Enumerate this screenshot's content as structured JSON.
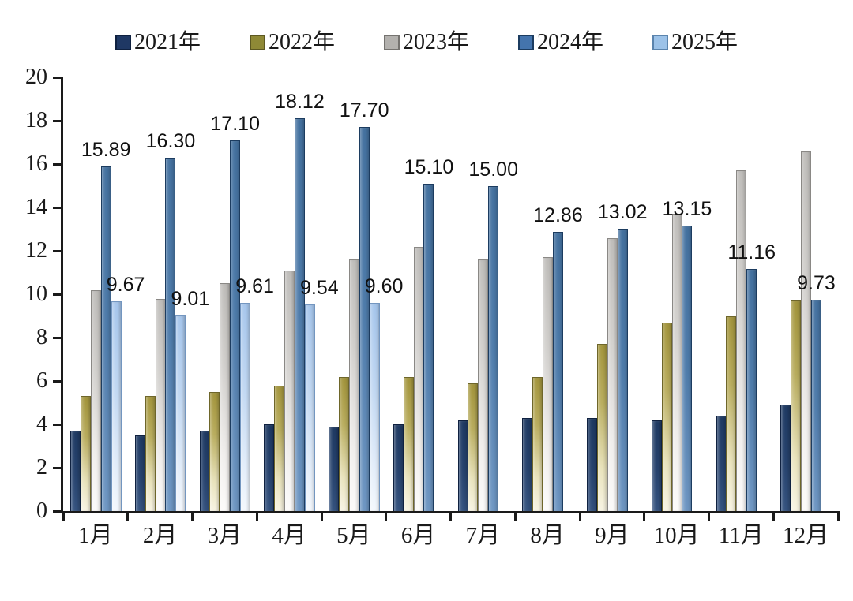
{
  "chart_data": {
    "type": "bar",
    "title": "",
    "categories": [
      "1月",
      "2月",
      "3月",
      "4月",
      "5月",
      "6月",
      "7月",
      "8月",
      "9月",
      "10月",
      "11月",
      "12月"
    ],
    "series": [
      {
        "name": "2021年",
        "color": "#1F3864",
        "values": [
          3.7,
          3.5,
          3.7,
          4.0,
          3.9,
          4.0,
          4.2,
          4.3,
          4.3,
          4.2,
          4.4,
          4.9
        ],
        "data_labels": null
      },
      {
        "name": "2022年",
        "color": "#8F8936",
        "values": [
          5.3,
          5.3,
          5.5,
          5.8,
          6.2,
          6.2,
          5.9,
          6.2,
          7.7,
          8.7,
          9.0,
          9.7
        ],
        "data_labels": null
      },
      {
        "name": "2023年",
        "color": "#B3B1AE",
        "values": [
          10.2,
          9.8,
          10.5,
          11.1,
          11.6,
          12.2,
          11.6,
          11.7,
          12.6,
          13.7,
          15.7,
          16.6
        ],
        "data_labels": null
      },
      {
        "name": "2024年",
        "color": "#4474AD",
        "values": [
          15.89,
          16.3,
          17.1,
          18.12,
          17.7,
          15.1,
          15.0,
          12.86,
          13.02,
          13.15,
          11.16,
          9.73
        ],
        "data_labels": [
          "15.89",
          "16.30",
          "17.10",
          "18.12",
          "17.70",
          "15.10",
          "15.00",
          "12.86",
          "13.02",
          "13.15",
          "11.16",
          "9.73"
        ]
      },
      {
        "name": "2025年",
        "color": "#9CC2E8",
        "values": [
          9.67,
          9.01,
          9.61,
          9.54,
          9.6,
          null,
          null,
          null,
          null,
          null,
          null,
          null
        ],
        "data_labels": [
          "9.67",
          "9.01",
          "9.61",
          "9.54",
          "9.60",
          null,
          null,
          null,
          null,
          null,
          null,
          null
        ]
      }
    ],
    "ylim": [
      0,
      20
    ],
    "ytick_step": 2,
    "ytick_labels": [
      "0",
      "2",
      "4",
      "6",
      "8",
      "10",
      "12",
      "14",
      "16",
      "18",
      "20"
    ],
    "xlabel": "",
    "ylabel": "",
    "grid": false,
    "legend_position": "top",
    "axis_color": "#1a1a1a",
    "data_label_color": "#111111",
    "background_color": "#ffffff"
  }
}
